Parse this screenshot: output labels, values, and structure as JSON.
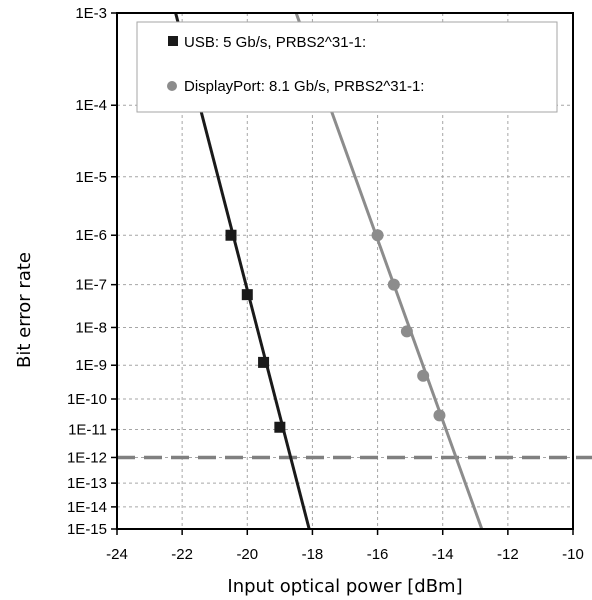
{
  "chart_data": {
    "type": "line",
    "title": "",
    "xlabel": "Input optical power [dBm]",
    "ylabel": "Bit error rate",
    "xlim": [
      -24,
      -10
    ],
    "ylim": [
      1e-15,
      0.001
    ],
    "yscale": "nonlinear (BER waterfall scale)",
    "grid": true,
    "legend_position": "top-right",
    "x_tick_labels": [
      "-24",
      "-22",
      "-20",
      "-18",
      "-16",
      "-14",
      "-12",
      "-10"
    ],
    "y_tick_labels": [
      "1E-3",
      "1E-4",
      "1E-5",
      "1E-6",
      "1E-7",
      "1E-8",
      "1E-9",
      "1E-10",
      "1E-11",
      "1E-12",
      "1E-13",
      "1E-14",
      "1E-15"
    ],
    "series": [
      {
        "name": "USB:  5 Gb/s, PRBS2^31-1:",
        "marker": "square",
        "color": "#1a1a1a",
        "x": [
          -20.5,
          -20.0,
          -19.5,
          -19.0
        ],
        "y": [
          1e-06,
          6e-08,
          1.2e-09,
          1.2e-11
        ],
        "fit_line": {
          "x": [
            -22.2,
            -18.1
          ],
          "y": [
            0.001,
            1e-15
          ]
        }
      },
      {
        "name": "DisplayPort:  8.1 Gb/s, PRBS2^31-1:",
        "marker": "circle",
        "color": "#8c8c8c",
        "x": [
          -16.0,
          -15.5,
          -15.1,
          -14.6,
          -14.1
        ],
        "y": [
          1e-06,
          1e-07,
          8e-09,
          5e-10,
          3e-11
        ],
        "fit_line": {
          "x": [
            -18.5,
            -12.8
          ],
          "y": [
            0.001,
            1e-15
          ]
        }
      }
    ],
    "reference_line": {
      "y": 1e-12,
      "style": "dashed",
      "color": "#808080"
    }
  }
}
